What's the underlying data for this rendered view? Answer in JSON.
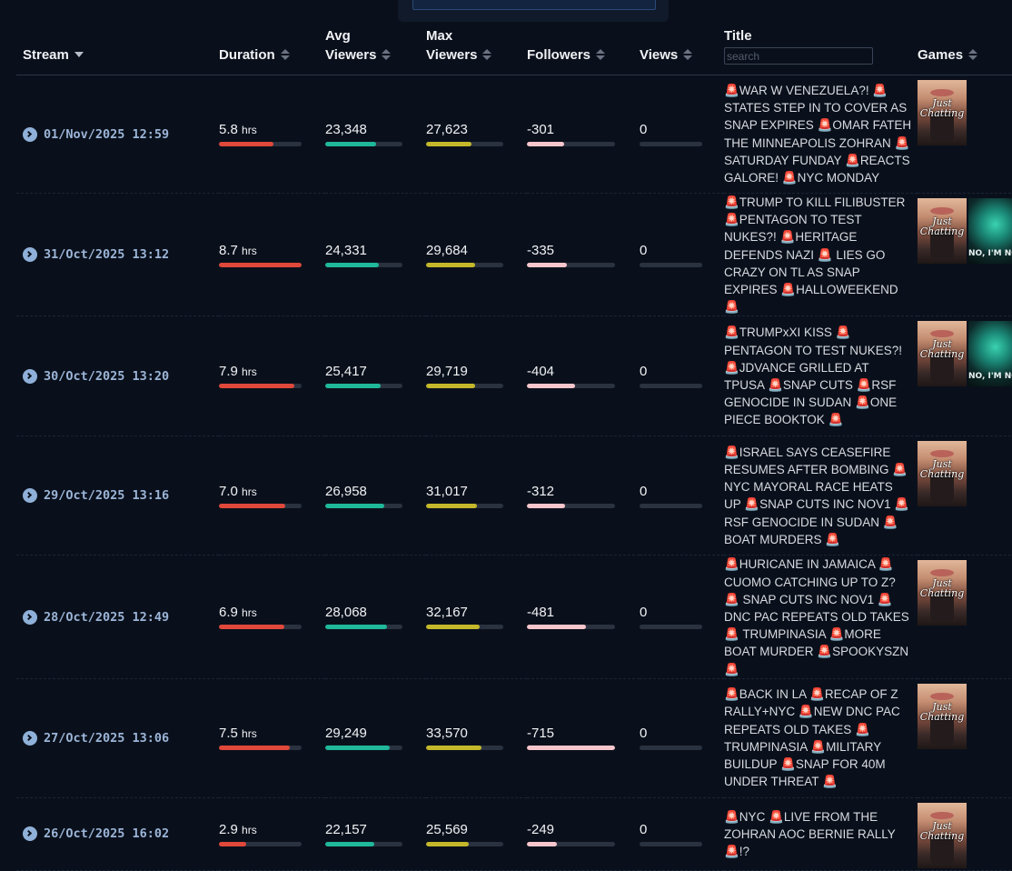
{
  "header": {
    "stream": "Stream",
    "duration": "Duration",
    "avg_viewers_line1": "Avg",
    "avg_viewers_line2": "Viewers",
    "max_viewers_line1": "Max",
    "max_viewers_line2": "Viewers",
    "followers": "Followers",
    "views": "Views",
    "title": "Title",
    "title_search_placeholder": "search",
    "games": "Games"
  },
  "colors": {
    "duration_bar": "#e0483a",
    "avg_viewers_bar": "#1fb89a",
    "max_viewers_bar": "#c4b82a",
    "followers_bar": "#f7c6cc",
    "bar_track": "#2a3240",
    "stream_link": "#9bb5d8"
  },
  "rows": [
    {
      "date": "01/Nov/2025 12:59",
      "duration": "5.8",
      "duration_unit": "hrs",
      "duration_fill": 0.66,
      "avg_viewers": "23,348",
      "avg_fill": 0.66,
      "max_viewers": "27,623",
      "max_fill": 0.59,
      "followers": "-301",
      "followers_fill": 0.42,
      "views": "0",
      "views_fill": 0,
      "title": "🚨WAR W VENEZUELA?! 🚨STATES STEP IN TO COVER AS SNAP EXPIRES 🚨OMAR FATEH THE MINNEAPOLIS ZOHRAN 🚨SATURDAY FUNDAY 🚨REACTS GALORE! 🚨NYC MONDAY",
      "games": [
        "Just Chatting"
      ]
    },
    {
      "date": "31/Oct/2025 13:12",
      "duration": "8.7",
      "duration_unit": "hrs",
      "duration_fill": 1.0,
      "avg_viewers": "24,331",
      "avg_fill": 0.69,
      "max_viewers": "29,684",
      "max_fill": 0.63,
      "followers": "-335",
      "followers_fill": 0.45,
      "views": "0",
      "views_fill": 0,
      "title": "🚨TRUMP TO KILL FILIBUSTER 🚨PENTAGON TO TEST NUKES?! 🚨HERITAGE DEFENDS NAZI 🚨 LIES GO CRAZY ON TL AS SNAP EXPIRES 🚨HALLOWEEKEND 🚨",
      "games": [
        "Just Chatting",
        "No, I'm Not a Human"
      ]
    },
    {
      "date": "30/Oct/2025 13:20",
      "duration": "7.9",
      "duration_unit": "hrs",
      "duration_fill": 0.91,
      "avg_viewers": "25,417",
      "avg_fill": 0.72,
      "max_viewers": "29,719",
      "max_fill": 0.63,
      "followers": "-404",
      "followers_fill": 0.55,
      "views": "0",
      "views_fill": 0,
      "title": "🚨TRUMPxXI KISS 🚨PENTAGON TO TEST NUKES?! 🚨JDVANCE GRILLED AT TPUSA 🚨SNAP CUTS 🚨RSF GENOCIDE IN SUDAN 🚨ONE PIECE BOOKTOK 🚨",
      "games": [
        "Just Chatting",
        "No, I'm Not a Human"
      ]
    },
    {
      "date": "29/Oct/2025 13:16",
      "duration": "7.0",
      "duration_unit": "hrs",
      "duration_fill": 0.8,
      "avg_viewers": "26,958",
      "avg_fill": 0.77,
      "max_viewers": "31,017",
      "max_fill": 0.66,
      "followers": "-312",
      "followers_fill": 0.43,
      "views": "0",
      "views_fill": 0,
      "title": "🚨ISRAEL SAYS CEASEFIRE RESUMES AFTER BOMBING 🚨NYC MAYORAL RACE HEATS UP 🚨SNAP CUTS INC NOV1 🚨RSF GENOCIDE IN SUDAN 🚨BOAT MURDERS 🚨",
      "games": [
        "Just Chatting"
      ]
    },
    {
      "date": "28/Oct/2025 12:49",
      "duration": "6.9",
      "duration_unit": "hrs",
      "duration_fill": 0.79,
      "avg_viewers": "28,068",
      "avg_fill": 0.8,
      "max_viewers": "32,167",
      "max_fill": 0.69,
      "followers": "-481",
      "followers_fill": 0.67,
      "views": "0",
      "views_fill": 0,
      "title": "🚨HURICANE IN JAMAICA 🚨 CUOMO CATCHING UP TO Z? 🚨 SNAP CUTS INC NOV1 🚨DNC PAC REPEATS OLD TAKES 🚨 TRUMPINASIA 🚨MORE BOAT MURDER 🚨SPOOKYSZN 🚨",
      "games": [
        "Just Chatting"
      ]
    },
    {
      "date": "27/Oct/2025 13:06",
      "duration": "7.5",
      "duration_unit": "hrs",
      "duration_fill": 0.86,
      "avg_viewers": "29,249",
      "avg_fill": 0.84,
      "max_viewers": "33,570",
      "max_fill": 0.72,
      "followers": "-715",
      "followers_fill": 1.0,
      "views": "0",
      "views_fill": 0,
      "title": "🚨BACK IN LA 🚨RECAP OF Z RALLY+NYC 🚨NEW DNC PAC REPEATS OLD TAKES 🚨 TRUMPINASIA 🚨MILITARY BUILDUP 🚨SNAP FOR 40M UNDER THREAT 🚨",
      "games": [
        "Just Chatting"
      ]
    },
    {
      "date": "26/Oct/2025 16:02",
      "duration": "2.9",
      "duration_unit": "hrs",
      "duration_fill": 0.33,
      "avg_viewers": "22,157",
      "avg_fill": 0.63,
      "max_viewers": "25,569",
      "max_fill": 0.55,
      "followers": "-249",
      "followers_fill": 0.34,
      "views": "0",
      "views_fill": 0,
      "title": "🚨NYC 🚨LIVE FROM THE ZOHRAN AOC BERNIE RALLY 🚨!?",
      "games": [
        "Just Chatting"
      ]
    }
  ]
}
